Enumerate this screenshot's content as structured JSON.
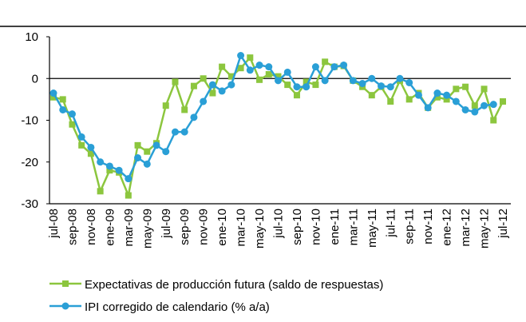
{
  "chart_data": {
    "type": "line",
    "categories": [
      "jul-08",
      null,
      "sep-08",
      null,
      "nov-08",
      null,
      "ene-09",
      null,
      "mar-09",
      null,
      "may-09",
      null,
      "jul-09",
      null,
      "sep-09",
      null,
      "nov-09",
      null,
      "ene-10",
      null,
      "mar-10",
      null,
      "may-10",
      null,
      "jul-10",
      null,
      "sep-10",
      null,
      "nov-10",
      null,
      "ene-11",
      null,
      "mar-11",
      null,
      "may-11",
      null,
      "jul-11",
      null,
      "sep-11",
      null,
      "nov-11",
      null,
      "ene-12",
      null,
      "mar-12",
      null,
      "may-12",
      null,
      "jul-12"
    ],
    "series": [
      {
        "name": "Expectativas de producción futura (saldo de respuestas)",
        "color": "#8cc63e",
        "marker": "square",
        "values": [
          -4.5,
          -5,
          -11,
          -16,
          -18,
          -27,
          -22,
          -22.5,
          -28,
          -16,
          -17.5,
          -15.5,
          -6.5,
          -0.8,
          -7.5,
          -1.8,
          0,
          -3.5,
          2.8,
          0.5,
          2.5,
          5,
          -0.3,
          1,
          0.5,
          -1.5,
          -4,
          -0.8,
          -1.5,
          4,
          2.8,
          3,
          -0.5,
          -2,
          -4,
          -2,
          -5.5,
          -0.5,
          -5,
          -3.5,
          -7,
          -4.5,
          -5,
          -2.5,
          -2,
          -6.5,
          -2.5,
          -10,
          -5.5
        ]
      },
      {
        "name": "IPI corregido de calendario (% a/a)",
        "color": "#2a9fd6",
        "marker": "circle",
        "values": [
          -3.5,
          -7.5,
          -8.5,
          -14,
          -16.5,
          -20,
          -21,
          -22,
          -24,
          -19,
          -20.5,
          -16,
          -17.5,
          -12.8,
          -12.8,
          -9.3,
          -5.5,
          -1.5,
          -3,
          -1.5,
          5.5,
          2,
          3.2,
          2.8,
          -0.5,
          1.5,
          -2,
          -2,
          2.8,
          -0.5,
          2.8,
          3.2,
          -0.5,
          -1.2,
          0,
          -1.8,
          -2,
          0,
          -1,
          -4,
          -7,
          -3.5,
          -4,
          -5.5,
          -7.5,
          -8,
          -6.5,
          -6.2,
          null
        ]
      }
    ],
    "ylim": [
      -30,
      10
    ],
    "yticks": [
      10,
      0,
      -10,
      -20,
      -30
    ],
    "grid": false
  }
}
